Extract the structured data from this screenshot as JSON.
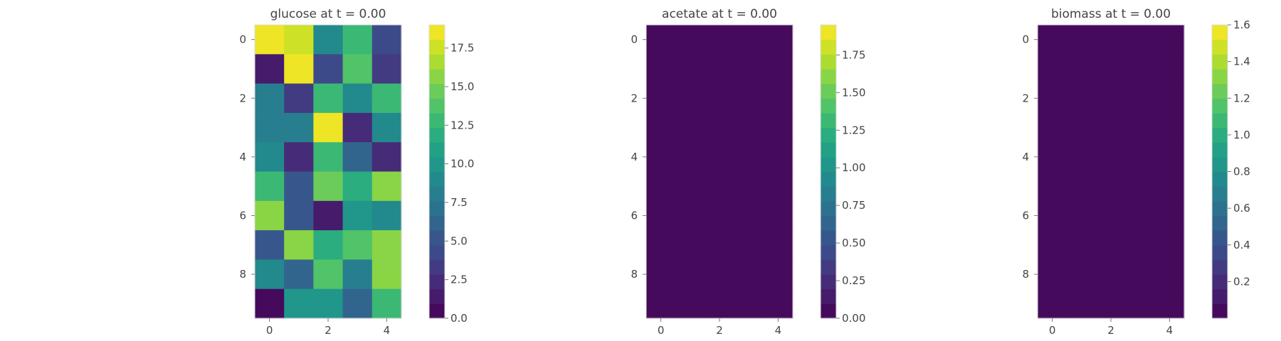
{
  "chart_data": [
    {
      "type": "heatmap",
      "title": "glucose at t = 0.00",
      "rows": 10,
      "cols": 5,
      "xticks": [
        0,
        2,
        4
      ],
      "yticks": [
        0,
        2,
        4,
        6,
        8
      ],
      "vmin": 0.0,
      "vmax": 19.0,
      "colorbar_ticks": [
        "0.0",
        "2.5",
        "5.0",
        "7.5",
        "10.0",
        "12.5",
        "15.0",
        "17.5"
      ],
      "values": [
        [
          19.0,
          17.6,
          9.0,
          12.6,
          4.4
        ],
        [
          1.8,
          18.6,
          4.4,
          13.4,
          3.6
        ],
        [
          8.0,
          3.8,
          12.4,
          8.7,
          12.6
        ],
        [
          8.0,
          8.0,
          18.8,
          2.2,
          9.2
        ],
        [
          8.8,
          2.0,
          12.4,
          6.3,
          2.2
        ],
        [
          12.6,
          5.2,
          15.2,
          12.0,
          15.8
        ],
        [
          16.0,
          5.4,
          1.8,
          10.4,
          8.6
        ],
        [
          5.0,
          16.0,
          12.0,
          13.8,
          16.0
        ],
        [
          9.2,
          6.6,
          13.4,
          8.0,
          16.0
        ],
        [
          0.9,
          9.8,
          9.8,
          6.0,
          12.4
        ]
      ]
    },
    {
      "type": "heatmap",
      "title": "acetate at t = 0.00",
      "rows": 10,
      "cols": 5,
      "xticks": [
        0,
        2,
        4
      ],
      "yticks": [
        0,
        2,
        4,
        6,
        8
      ],
      "vmin": 0.0,
      "vmax": 1.95,
      "colorbar_ticks": [
        "0.00",
        "0.25",
        "0.50",
        "0.75",
        "1.00",
        "1.25",
        "1.50",
        "1.75"
      ],
      "values": [
        [
          0,
          0,
          0,
          0,
          0
        ],
        [
          0,
          0,
          0,
          0,
          0
        ],
        [
          0,
          0,
          0,
          0,
          0
        ],
        [
          0,
          0,
          0,
          0,
          0
        ],
        [
          0,
          0,
          0,
          0,
          0
        ],
        [
          0,
          0,
          0,
          0,
          0
        ],
        [
          0,
          0,
          0,
          0,
          0
        ],
        [
          0,
          0,
          0,
          0,
          0
        ],
        [
          0,
          0,
          0,
          0,
          0
        ],
        [
          0,
          0,
          0,
          0,
          0
        ]
      ]
    },
    {
      "type": "heatmap",
      "title": "biomass at t = 0.00",
      "rows": 10,
      "cols": 5,
      "xticks": [
        0,
        2,
        4
      ],
      "yticks": [
        0,
        2,
        4,
        6,
        8
      ],
      "vmin": 0.0,
      "vmax": 1.6,
      "colorbar_ticks": [
        "0.2",
        "0.4",
        "0.6",
        "0.8",
        "1.0",
        "1.2",
        "1.4",
        "1.6"
      ],
      "values": [
        [
          0.0,
          0.0,
          0.0,
          0.0,
          0.08
        ],
        [
          0.0,
          0.0,
          0.07,
          0.0,
          0.07
        ],
        [
          0.0,
          0.0,
          0.0,
          0.08,
          0.06
        ],
        [
          0.0,
          0.0,
          0.07,
          0.08,
          0.0
        ],
        [
          0.0,
          0.08,
          0.08,
          0.0,
          0.0
        ],
        [
          0.08,
          0.08,
          0.07,
          0.0,
          0.0
        ],
        [
          0.07,
          0.0,
          0.0,
          0.0,
          0.08
        ],
        [
          0.0,
          0.0,
          0.07,
          0.07,
          0.0
        ],
        [
          0.07,
          0.0,
          0.0,
          0.07,
          0.06
        ],
        [
          0.0,
          0.07,
          0.0,
          0.0,
          0.0
        ]
      ]
    }
  ]
}
